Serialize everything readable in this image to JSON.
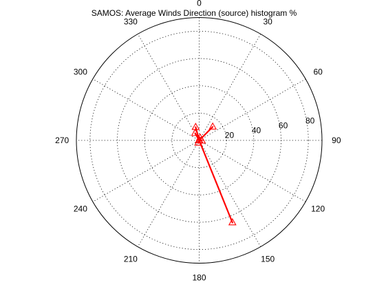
{
  "chart_data": {
    "type": "polar",
    "title": "SAMOS: Average Winds Direction (source) histogram %",
    "radial_ticks": [
      20,
      40,
      60,
      80
    ],
    "radial_max": 90,
    "angle_ticks": [
      "0",
      "30",
      "60",
      "90",
      "120",
      "150",
      "180",
      "210",
      "240",
      "270",
      "300",
      "330"
    ],
    "angle_zero": "top",
    "angle_direction": "clockwise",
    "grid": true,
    "series": [
      {
        "color": "#ff0000",
        "marker": "triangle",
        "points": [
          {
            "theta": 0,
            "r": 0
          },
          {
            "theta": 45,
            "r": 14
          },
          {
            "theta": 0,
            "r": 0
          },
          {
            "theta": 158,
            "r": 65
          },
          {
            "theta": 0,
            "r": 0
          },
          {
            "theta": 345,
            "r": 10
          },
          {
            "theta": 0,
            "r": 0
          },
          {
            "theta": 330,
            "r": 6
          },
          {
            "theta": 0,
            "r": 0
          },
          {
            "theta": 20,
            "r": 2
          },
          {
            "theta": 0,
            "r": 0
          },
          {
            "theta": 200,
            "r": 2
          },
          {
            "theta": 0,
            "r": 0
          },
          {
            "theta": 100,
            "r": 2
          }
        ]
      }
    ]
  }
}
